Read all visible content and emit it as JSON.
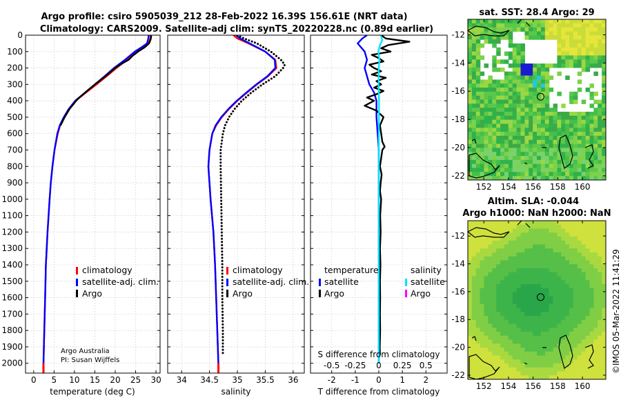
{
  "header": {
    "line1": "Argo profile: csiro 5905039_212 28-Feb-2022 16.39S 156.61E (NRT data)",
    "line2": "Climatology: CARS2009. Satellite-adj clim: synTS_20220228.nc (0.89d earlier)"
  },
  "credit": {
    "line1": "Argo Australia",
    "line2": "PI: Susan Wijffels"
  },
  "side_stamp": "©IMOS 05-Mar-2022 11:41:29",
  "maps": {
    "sst_title": "sat. SST: 28.4 Argo: 29",
    "sla_title1": "Altim. SLA: -0.044",
    "sla_title2": "Argo h1000: NaN h2000: NaN",
    "lat_ticks": [
      "-12",
      "-14",
      "-16",
      "-18",
      "-20",
      "-22"
    ],
    "lon_ticks": [
      "152",
      "154",
      "156",
      "158",
      "160"
    ],
    "lat_range": [
      -22.3,
      -10.9
    ],
    "lon_range": [
      150.7,
      161.9
    ],
    "argo_position": {
      "lat": -16.39,
      "lon": 156.61
    }
  },
  "colors": {
    "climatology": "#ff0000",
    "satellite": "#0000ff",
    "argo": "#000000",
    "sal_satellite": "#00e5ff",
    "sal_argo": "#ff00ff"
  },
  "legend1": {
    "climatology": "climatology",
    "satellite": "satellite-adj. clim.",
    "argo": "Argo"
  },
  "legend2": {
    "climatology": "climatology",
    "satellite": "satellite-adj. clim.",
    "argo": "Argo"
  },
  "legend3": {
    "temp_head": "temperature",
    "sal_head": "salinity",
    "temp_sat": "satellite",
    "temp_argo": "Argo",
    "sal_sat": "satellite",
    "sal_argo": "Argo"
  },
  "chart_data": [
    {
      "type": "line",
      "title": "",
      "xlabel": "temperature (deg C)",
      "ylabel": "",
      "xlim": [
        -2,
        31
      ],
      "ylim": [
        2060,
        0
      ],
      "xticks": [
        0,
        5,
        10,
        15,
        20,
        25,
        30
      ],
      "yticks": [
        0,
        100,
        200,
        300,
        400,
        500,
        600,
        700,
        800,
        900,
        1000,
        1100,
        1200,
        1300,
        1400,
        1500,
        1600,
        1700,
        1800,
        1900,
        2000
      ],
      "grid": true,
      "series": [
        {
          "name": "climatology",
          "style": "solid",
          "color": "#ff0000",
          "depth": [
            0,
            20,
            50,
            75,
            100,
            150,
            200,
            250,
            300,
            350,
            400,
            450,
            500,
            550,
            600,
            700,
            800,
            900,
            1000,
            1200,
            1400,
            1600,
            1800,
            2000
          ],
          "values": [
            28.7,
            28.6,
            28.2,
            26.7,
            25.1,
            22.9,
            20.3,
            17.9,
            15.4,
            12.8,
            10.3,
            8.7,
            7.5,
            6.5,
            5.9,
            5.1,
            4.6,
            4.2,
            3.9,
            3.4,
            3.0,
            2.8,
            2.6,
            2.4
          ]
        },
        {
          "name": "satellite-adj. clim.",
          "style": "solid",
          "color": "#0000ff",
          "depth": [
            0,
            20,
            50,
            75,
            100,
            150,
            200,
            250,
            300,
            350,
            400,
            450,
            500,
            550,
            600,
            700,
            800,
            900,
            1000,
            1200,
            1400,
            1600,
            1800,
            2000
          ],
          "values": [
            28.2,
            28.1,
            27.8,
            26.4,
            24.8,
            22.4,
            19.7,
            17.4,
            15.0,
            12.6,
            10.2,
            8.6,
            7.4,
            6.4,
            5.8,
            5.1,
            4.6,
            4.2,
            3.9,
            3.4,
            3.0,
            2.8,
            2.6,
            2.4
          ]
        },
        {
          "name": "Argo",
          "style": "solid",
          "color": "#000000",
          "depth": [
            0,
            10,
            25,
            50,
            75,
            100,
            125,
            150,
            175,
            200,
            250,
            300,
            350,
            380,
            400,
            450,
            500,
            550
          ],
          "values": [
            28.8,
            28.8,
            28.7,
            28.3,
            27.2,
            25.6,
            24.3,
            23.3,
            21.5,
            20.0,
            17.6,
            15.0,
            12.6,
            11.2,
            10.4,
            8.8,
            7.6,
            6.6
          ]
        }
      ]
    },
    {
      "type": "line",
      "title": "",
      "xlabel": "salinity",
      "ylabel": "",
      "xlim": [
        33.75,
        36.2
      ],
      "ylim": [
        2060,
        0
      ],
      "xticks": [
        34,
        34.5,
        35,
        35.5,
        36
      ],
      "xticklabels": [
        "34",
        "34.5",
        "35",
        "35.5",
        "36"
      ],
      "grid": true,
      "series": [
        {
          "name": "climatology",
          "style": "solid",
          "color": "#ff0000",
          "depth": [
            0,
            20,
            50,
            100,
            150,
            200,
            250,
            300,
            350,
            400,
            450,
            500,
            550,
            600,
            700,
            800,
            1000,
            1200,
            1400,
            1600,
            1800,
            2000
          ],
          "values": [
            34.93,
            35.0,
            35.2,
            35.5,
            35.68,
            35.7,
            35.55,
            35.35,
            35.17,
            35.0,
            34.85,
            34.72,
            34.62,
            34.55,
            34.5,
            34.48,
            34.52,
            34.57,
            34.6,
            34.62,
            34.64,
            34.66
          ]
        },
        {
          "name": "satellite-adj. clim.",
          "style": "solid",
          "color": "#0000ff",
          "depth": [
            0,
            20,
            50,
            100,
            150,
            200,
            250,
            300,
            350,
            400,
            450,
            500,
            550,
            600,
            700,
            800,
            1000,
            1200,
            1400,
            1600,
            1800,
            2000
          ],
          "values": [
            34.98,
            35.05,
            35.22,
            35.5,
            35.67,
            35.68,
            35.54,
            35.34,
            35.16,
            34.99,
            34.84,
            34.71,
            34.61,
            34.55,
            34.5,
            34.48,
            34.52,
            34.57,
            34.6,
            34.62,
            34.64,
            34.66
          ]
        },
        {
          "name": "Argo",
          "style": "dotted",
          "color": "#000000",
          "depth": [
            0,
            20,
            50,
            100,
            150,
            180,
            200,
            250,
            300,
            350,
            400,
            450,
            500,
            550,
            600,
            700,
            800,
            1000,
            1200,
            1400,
            1600,
            1800,
            1950
          ],
          "values": [
            35.0,
            35.12,
            35.35,
            35.6,
            35.78,
            35.85,
            35.82,
            35.68,
            35.45,
            35.25,
            35.08,
            34.95,
            34.85,
            34.78,
            34.74,
            34.7,
            34.7,
            34.71,
            34.72,
            34.73,
            34.73,
            34.74,
            34.74
          ]
        }
      ]
    },
    {
      "type": "line",
      "title": "",
      "xlabel": "T difference from climatology",
      "x2label": "S difference from climatology",
      "ylabel": "",
      "xlim": [
        -2.9,
        2.9
      ],
      "ylim": [
        2060,
        0
      ],
      "xticks": [
        -2,
        -1,
        0,
        1,
        2
      ],
      "x2ticks": [
        -0.5,
        -0.25,
        0,
        0.25,
        0.5
      ],
      "x2ticklabels": [
        "-0.5",
        "-0.25",
        "0",
        "0.25",
        "0.5"
      ],
      "grid": true,
      "series": [
        {
          "name": "temperature satellite",
          "style": "solid",
          "color": "#0000ff",
          "depth": [
            0,
            20,
            50,
            100,
            150,
            200,
            250,
            300,
            350,
            400,
            500,
            600,
            700,
            800,
            1000,
            1400,
            2000
          ],
          "values": [
            -0.5,
            -0.7,
            -0.9,
            -0.6,
            -0.5,
            -0.6,
            -0.5,
            -0.4,
            -0.2,
            -0.1,
            -0.1,
            -0.05,
            0,
            0,
            0,
            0,
            0
          ]
        },
        {
          "name": "temperature Argo",
          "style": "solid",
          "color": "#000000",
          "depth": [
            0,
            20,
            40,
            60,
            80,
            100,
            120,
            140,
            160,
            180,
            200,
            220,
            240,
            260,
            280,
            300,
            320,
            340,
            360,
            380,
            400,
            430,
            460,
            500,
            550,
            600,
            650,
            680,
            700,
            750,
            800,
            850,
            900,
            950,
            1000,
            1100,
            1200,
            1300,
            1400,
            1500,
            1600,
            1700,
            1800,
            1900,
            1950
          ],
          "values": [
            0.1,
            0.3,
            1.3,
            0.4,
            0.1,
            0.5,
            -0.3,
            0.0,
            0.2,
            -0.4,
            -0.2,
            0.1,
            -0.3,
            0.3,
            -0.1,
            0.1,
            -0.2,
            0.2,
            -0.1,
            -0.5,
            -0.2,
            -0.6,
            -0.1,
            0.2,
            0.05,
            0.1,
            0.15,
            0.25,
            0.15,
            0.1,
            0.05,
            0.12,
            0.08,
            0.05,
            0.1,
            0.06,
            0.08,
            0.05,
            0.07,
            0.05,
            0.06,
            0.05,
            0.06,
            0.04,
            0.05
          ]
        },
        {
          "name": "salinity satellite",
          "style": "solid",
          "color": "#00e5ff",
          "depth": [
            0,
            30,
            60,
            100,
            150,
            200,
            300,
            400,
            600,
            800,
            1000,
            1200,
            1400,
            1600,
            1800,
            2000
          ],
          "values": [
            0.08,
            0.15,
            0.05,
            -0.02,
            0.03,
            0.0,
            -0.01,
            0.01,
            0,
            0,
            0,
            0,
            0,
            0,
            0,
            0
          ]
        }
      ]
    }
  ]
}
